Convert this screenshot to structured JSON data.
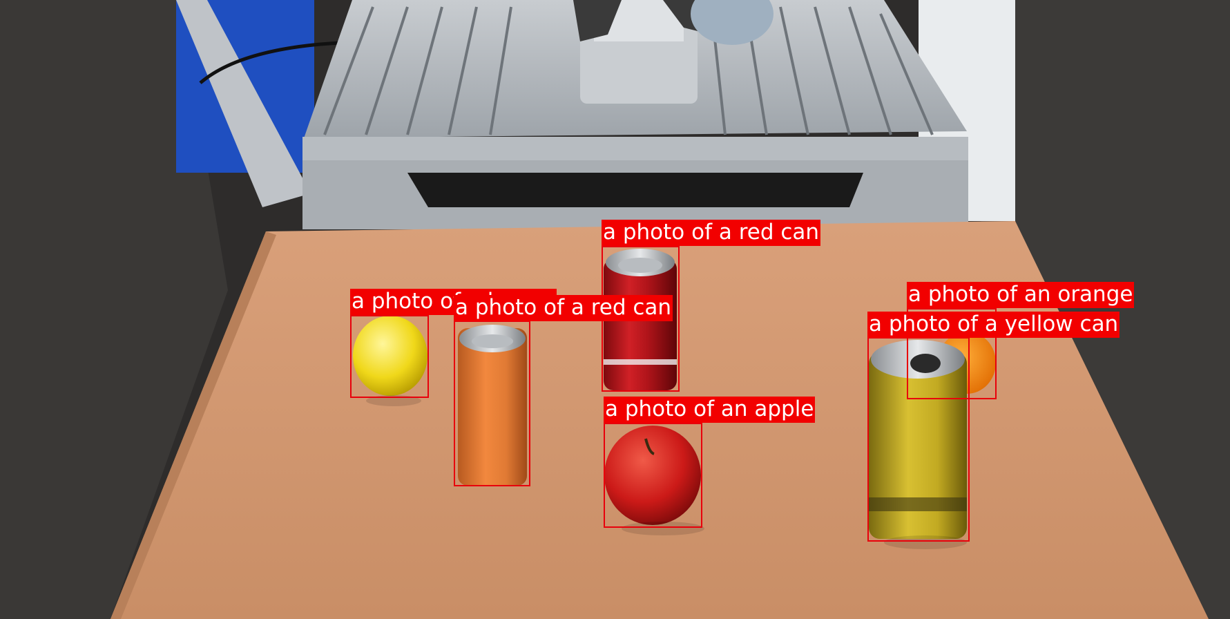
{
  "labels": {
    "red_can_back": "a photo of a red can",
    "lemon": "a photo of a lemon",
    "red_can_front": "a photo of a red can",
    "orange": "a photo of an orange",
    "yellow_can": "a photo of a yellow can",
    "apple": "a photo of an apple"
  },
  "colors": {
    "box": "#e8000b",
    "label_bg": "#f20000",
    "label_text": "#ffffff"
  }
}
